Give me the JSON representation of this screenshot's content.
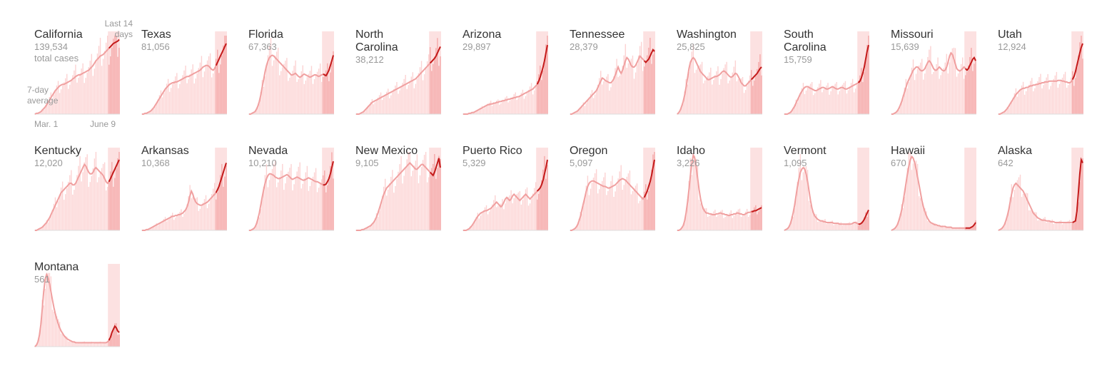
{
  "labels": {
    "last14": "Last 14 days",
    "avg": "7-day average",
    "totalCases": "total cases",
    "start": "Mar. 1",
    "end": "June 9"
  },
  "colors": {
    "bar": "#fcd3d3",
    "barRecent": "#f5a9a9",
    "line": "#f0a0a0",
    "lineRecent": "#c41a1a",
    "base": "#dddddd"
  },
  "chart_data": [
    {
      "type": "bar",
      "name": "California",
      "total": "139,534",
      "avg": [
        0,
        1,
        1,
        2,
        3,
        5,
        7,
        9,
        12,
        15,
        18,
        21,
        24,
        27,
        30,
        32,
        34,
        36,
        37,
        38,
        38,
        39,
        40,
        41,
        42,
        43,
        45,
        46,
        48,
        49,
        50,
        50,
        51,
        52,
        53,
        54,
        55,
        56,
        58,
        60,
        62,
        65,
        68,
        70,
        72,
        74,
        75,
        76,
        78,
        80,
        82,
        84,
        86,
        88,
        90,
        91,
        92,
        93,
        95
      ]
    },
    {
      "type": "bar",
      "name": "Texas",
      "total": "81,056",
      "avg": [
        0,
        0,
        1,
        1,
        2,
        3,
        4,
        6,
        8,
        11,
        14,
        17,
        20,
        23,
        26,
        29,
        32,
        34,
        36,
        38,
        39,
        40,
        40,
        41,
        41,
        42,
        43,
        44,
        45,
        46,
        47,
        48,
        48,
        49,
        50,
        51,
        52,
        53,
        54,
        55,
        56,
        58,
        60,
        61,
        62,
        62,
        61,
        59,
        57,
        56,
        58,
        62,
        66,
        70,
        74,
        78,
        82,
        86,
        90
      ]
    },
    {
      "type": "bar",
      "name": "Florida",
      "total": "67,363",
      "avg": [
        0,
        0,
        1,
        2,
        3,
        6,
        10,
        16,
        24,
        34,
        44,
        54,
        62,
        68,
        72,
        74,
        75,
        74,
        72,
        70,
        68,
        66,
        64,
        62,
        60,
        58,
        56,
        54,
        52,
        50,
        50,
        51,
        52,
        50,
        48,
        47,
        48,
        50,
        51,
        50,
        49,
        48,
        47,
        48,
        49,
        50,
        50,
        49,
        48,
        49,
        50,
        51,
        50,
        49,
        52,
        56,
        62,
        68,
        75
      ]
    },
    {
      "type": "bar",
      "name": "North Carolina",
      "total": "38,212",
      "avg": [
        0,
        0,
        0,
        1,
        2,
        3,
        5,
        7,
        9,
        11,
        13,
        15,
        16,
        17,
        18,
        19,
        20,
        21,
        22,
        23,
        24,
        25,
        26,
        27,
        28,
        29,
        30,
        31,
        32,
        33,
        34,
        35,
        36,
        37,
        38,
        39,
        40,
        41,
        42,
        43,
        44,
        45,
        47,
        49,
        51,
        53,
        55,
        57,
        59,
        61,
        63,
        65,
        67,
        69,
        71,
        74,
        78,
        82,
        86
      ]
    },
    {
      "type": "bar",
      "name": "Arizona",
      "total": "29,897",
      "avg": [
        0,
        0,
        0,
        0,
        1,
        1,
        2,
        2,
        3,
        4,
        5,
        6,
        7,
        8,
        9,
        10,
        11,
        12,
        12,
        13,
        13,
        14,
        14,
        15,
        15,
        16,
        16,
        17,
        17,
        18,
        18,
        19,
        19,
        20,
        20,
        21,
        21,
        22,
        22,
        23,
        24,
        25,
        26,
        27,
        28,
        29,
        30,
        31,
        32,
        34,
        36,
        38,
        42,
        47,
        53,
        60,
        68,
        78,
        88
      ]
    },
    {
      "type": "bar",
      "name": "Tennessee",
      "total": "28,379",
      "avg": [
        0,
        0,
        1,
        2,
        3,
        4,
        6,
        8,
        10,
        12,
        14,
        16,
        18,
        20,
        22,
        24,
        26,
        28,
        30,
        34,
        38,
        42,
        46,
        45,
        43,
        42,
        41,
        40,
        40,
        42,
        45,
        50,
        55,
        60,
        55,
        52,
        56,
        62,
        68,
        72,
        70,
        66,
        62,
        60,
        60,
        62,
        66,
        70,
        74,
        72,
        70,
        68,
        66,
        68,
        70,
        74,
        78,
        82,
        80
      ]
    },
    {
      "type": "bar",
      "name": "Washington",
      "total": "25,825",
      "avg": [
        0,
        2,
        5,
        10,
        16,
        24,
        34,
        46,
        58,
        66,
        70,
        72,
        70,
        66,
        62,
        58,
        54,
        52,
        50,
        48,
        46,
        44,
        44,
        45,
        46,
        47,
        48,
        48,
        49,
        50,
        52,
        54,
        55,
        54,
        52,
        50,
        48,
        47,
        48,
        50,
        52,
        51,
        48,
        44,
        40,
        38,
        36,
        36,
        38,
        40,
        42,
        44,
        46,
        48,
        50,
        52,
        55,
        58,
        60
      ]
    },
    {
      "type": "bar",
      "name": "South Carolina",
      "total": "15,759",
      "avg": [
        0,
        0,
        0,
        1,
        2,
        4,
        7,
        10,
        14,
        18,
        22,
        26,
        29,
        32,
        34,
        35,
        35,
        34,
        33,
        32,
        31,
        30,
        30,
        31,
        32,
        33,
        34,
        34,
        33,
        32,
        32,
        33,
        34,
        35,
        34,
        33,
        32,
        32,
        33,
        34,
        34,
        33,
        32,
        32,
        33,
        34,
        35,
        36,
        37,
        38,
        39,
        40,
        42,
        46,
        52,
        60,
        70,
        80,
        88
      ]
    },
    {
      "type": "bar",
      "name": "Missouri",
      "total": "15,639",
      "avg": [
        0,
        0,
        1,
        2,
        4,
        7,
        11,
        16,
        22,
        28,
        34,
        40,
        44,
        48,
        52,
        56,
        58,
        60,
        60,
        58,
        56,
        55,
        56,
        58,
        62,
        66,
        68,
        66,
        62,
        58,
        56,
        56,
        58,
        60,
        58,
        56,
        55,
        56,
        60,
        66,
        74,
        78,
        76,
        70,
        64,
        58,
        56,
        55,
        56,
        58,
        60,
        58,
        56,
        58,
        62,
        66,
        70,
        72,
        68
      ]
    },
    {
      "type": "bar",
      "name": "Utah",
      "total": "12,924",
      "avg": [
        0,
        0,
        1,
        2,
        3,
        5,
        7,
        10,
        13,
        16,
        19,
        22,
        25,
        27,
        29,
        31,
        32,
        33,
        33,
        34,
        34,
        35,
        36,
        36,
        37,
        37,
        38,
        38,
        39,
        39,
        40,
        40,
        41,
        41,
        41,
        42,
        42,
        42,
        42,
        42,
        42,
        43,
        43,
        43,
        42,
        42,
        41,
        41,
        40,
        40,
        41,
        44,
        48,
        54,
        62,
        70,
        78,
        85,
        90
      ]
    },
    {
      "type": "bar",
      "name": "Kentucky",
      "total": "12,020",
      "avg": [
        0,
        0,
        1,
        2,
        3,
        4,
        6,
        8,
        10,
        13,
        16,
        20,
        24,
        28,
        32,
        36,
        40,
        44,
        48,
        50,
        52,
        54,
        56,
        58,
        60,
        60,
        58,
        58,
        60,
        64,
        68,
        72,
        76,
        80,
        84,
        82,
        78,
        74,
        72,
        72,
        74,
        78,
        80,
        78,
        76,
        74,
        72,
        70,
        66,
        62,
        60,
        62,
        66,
        70,
        74,
        78,
        82,
        86,
        90
      ]
    },
    {
      "type": "bar",
      "name": "Arkansas",
      "total": "10,368",
      "avg": [
        0,
        0,
        0,
        1,
        1,
        2,
        3,
        4,
        5,
        6,
        7,
        8,
        9,
        10,
        11,
        12,
        13,
        14,
        15,
        16,
        17,
        18,
        18,
        19,
        19,
        20,
        20,
        21,
        22,
        24,
        26,
        30,
        36,
        44,
        50,
        46,
        40,
        36,
        34,
        33,
        32,
        32,
        33,
        34,
        35,
        36,
        38,
        40,
        42,
        44,
        46,
        48,
        52,
        56,
        62,
        68,
        74,
        80,
        86
      ]
    },
    {
      "type": "bar",
      "name": "Nevada",
      "total": "10,210",
      "avg": [
        0,
        0,
        1,
        2,
        4,
        8,
        14,
        22,
        32,
        42,
        52,
        60,
        66,
        70,
        72,
        72,
        71,
        70,
        68,
        67,
        66,
        66,
        67,
        68,
        69,
        70,
        71,
        70,
        68,
        66,
        65,
        66,
        67,
        68,
        67,
        66,
        65,
        64,
        64,
        65,
        66,
        67,
        66,
        65,
        64,
        63,
        62,
        62,
        61,
        60,
        59,
        58,
        58,
        59,
        62,
        66,
        72,
        80,
        88
      ]
    },
    {
      "type": "bar",
      "name": "New Mexico",
      "total": "9,105",
      "avg": [
        0,
        0,
        0,
        0,
        1,
        1,
        2,
        3,
        4,
        5,
        6,
        8,
        10,
        13,
        17,
        22,
        28,
        34,
        40,
        46,
        50,
        54,
        56,
        58,
        60,
        62,
        64,
        66,
        68,
        70,
        72,
        74,
        76,
        78,
        80,
        82,
        84,
        86,
        84,
        82,
        80,
        78,
        78,
        80,
        82,
        84,
        84,
        82,
        80,
        78,
        76,
        74,
        72,
        70,
        74,
        80,
        86,
        92,
        80
      ]
    },
    {
      "type": "bar",
      "name": "Puerto Rico",
      "total": "5,329",
      "avg": [
        0,
        0,
        0,
        1,
        2,
        4,
        6,
        9,
        12,
        15,
        18,
        20,
        22,
        23,
        24,
        25,
        25,
        26,
        27,
        28,
        30,
        32,
        34,
        36,
        34,
        32,
        30,
        32,
        36,
        40,
        42,
        40,
        38,
        40,
        44,
        46,
        44,
        42,
        40,
        38,
        40,
        42,
        44,
        46,
        44,
        42,
        40,
        42,
        44,
        46,
        48,
        50,
        52,
        54,
        58,
        64,
        72,
        80,
        90
      ]
    },
    {
      "type": "bar",
      "name": "Oregon",
      "total": "5,097",
      "avg": [
        0,
        0,
        1,
        2,
        4,
        7,
        12,
        18,
        26,
        34,
        42,
        50,
        56,
        60,
        62,
        63,
        63,
        62,
        61,
        60,
        59,
        58,
        57,
        56,
        56,
        55,
        54,
        54,
        55,
        56,
        57,
        58,
        60,
        62,
        64,
        65,
        66,
        65,
        64,
        62,
        60,
        58,
        56,
        54,
        52,
        50,
        48,
        46,
        44,
        42,
        40,
        42,
        46,
        50,
        56,
        62,
        70,
        80,
        90
      ]
    },
    {
      "type": "bar",
      "name": "Idaho",
      "total": "3,226",
      "avg": [
        0,
        0,
        1,
        3,
        6,
        12,
        22,
        36,
        52,
        70,
        86,
        96,
        92,
        80,
        66,
        52,
        40,
        32,
        27,
        24,
        22,
        22,
        21,
        21,
        20,
        20,
        20,
        21,
        21,
        22,
        22,
        21,
        21,
        20,
        20,
        19,
        19,
        20,
        20,
        21,
        21,
        22,
        22,
        21,
        21,
        20,
        20,
        21,
        22,
        23,
        23,
        24,
        24,
        25,
        25,
        26,
        27,
        28,
        29
      ]
    },
    {
      "type": "bar",
      "name": "Vermont",
      "total": "1,095",
      "avg": [
        0,
        1,
        2,
        4,
        8,
        14,
        22,
        32,
        44,
        56,
        66,
        74,
        78,
        80,
        78,
        72,
        62,
        50,
        38,
        28,
        22,
        18,
        16,
        14,
        13,
        12,
        12,
        11,
        11,
        10,
        10,
        10,
        10,
        10,
        9,
        9,
        9,
        9,
        8,
        8,
        8,
        8,
        8,
        8,
        8,
        8,
        8,
        9,
        10,
        10,
        9,
        8,
        8,
        9,
        11,
        14,
        18,
        22,
        26
      ]
    },
    {
      "type": "bar",
      "name": "Hawaii",
      "total": "670",
      "avg": [
        0,
        1,
        2,
        4,
        7,
        12,
        18,
        26,
        36,
        48,
        60,
        72,
        82,
        90,
        94,
        92,
        86,
        78,
        68,
        58,
        48,
        38,
        30,
        24,
        19,
        15,
        12,
        10,
        9,
        8,
        7,
        7,
        6,
        6,
        5,
        5,
        5,
        5,
        4,
        4,
        4,
        4,
        3,
        3,
        3,
        3,
        3,
        3,
        3,
        3,
        3,
        3,
        3,
        3,
        3,
        4,
        5,
        7,
        10
      ]
    },
    {
      "type": "bar",
      "name": "Alaska",
      "total": "642",
      "avg": [
        0,
        1,
        2,
        4,
        7,
        12,
        18,
        26,
        36,
        46,
        54,
        58,
        60,
        58,
        56,
        54,
        52,
        50,
        46,
        42,
        38,
        34,
        30,
        26,
        22,
        20,
        18,
        16,
        15,
        14,
        13,
        13,
        13,
        12,
        12,
        12,
        11,
        11,
        11,
        10,
        10,
        10,
        10,
        10,
        10,
        10,
        10,
        10,
        10,
        10,
        10,
        10,
        11,
        12,
        24,
        48,
        72,
        90,
        86
      ]
    },
    {
      "type": "bar",
      "name": "Montana",
      "total": "561",
      "avg": [
        0,
        2,
        6,
        14,
        28,
        48,
        70,
        86,
        92,
        88,
        80,
        70,
        60,
        50,
        42,
        35,
        29,
        24,
        20,
        17,
        14,
        12,
        10,
        9,
        8,
        7,
        6,
        6,
        5,
        5,
        5,
        5,
        5,
        5,
        5,
        5,
        5,
        5,
        5,
        5,
        5,
        5,
        5,
        5,
        5,
        5,
        5,
        5,
        5,
        5,
        6,
        8,
        12,
        18,
        22,
        26,
        24,
        20,
        18
      ]
    }
  ]
}
